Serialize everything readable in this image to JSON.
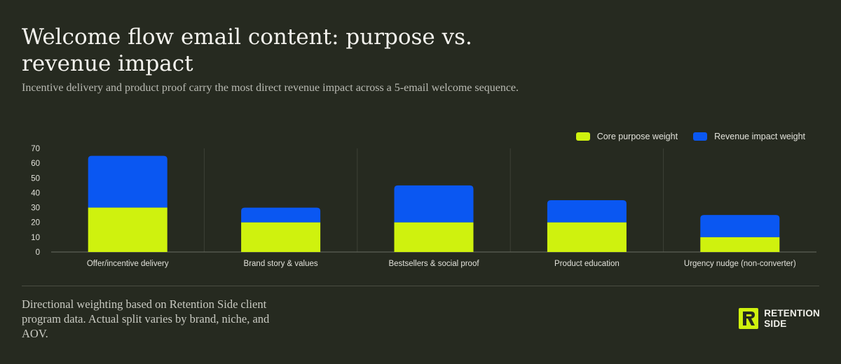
{
  "header": {
    "title": "Welcome flow email content: purpose vs. revenue impact",
    "subtitle": "Incentive delivery and product proof carry the most direct revenue impact across a 5-email welcome sequence."
  },
  "colors": {
    "background": "#262a20",
    "core": "#cff20e",
    "revenue": "#0a57f2",
    "grid": "#3d4036",
    "axis": "#6a6d62"
  },
  "chart_data": {
    "type": "bar",
    "stacked": true,
    "categories": [
      "Offer/incentive delivery",
      "Brand story & values",
      "Bestsellers & social proof",
      "Product education",
      "Urgency nudge (non-converter)"
    ],
    "series": [
      {
        "name": "Core purpose weight",
        "values": [
          30,
          20,
          20,
          20,
          10
        ]
      },
      {
        "name": "Revenue impact weight",
        "values": [
          35,
          10,
          25,
          15,
          15
        ]
      }
    ],
    "yticks": [
      0,
      10,
      20,
      30,
      40,
      50,
      60,
      70
    ],
    "ylim": [
      0,
      70
    ],
    "legend_position": "top-right",
    "grid": "vertical separators between categories"
  },
  "footer": {
    "note": "Directional weighting based on Retention Side client program data. Actual split varies by brand, niche, and AOV.",
    "logo_line1": "RETENTION",
    "logo_line2": "SIDE",
    "logo_icon": "retention-side-logo-icon"
  }
}
